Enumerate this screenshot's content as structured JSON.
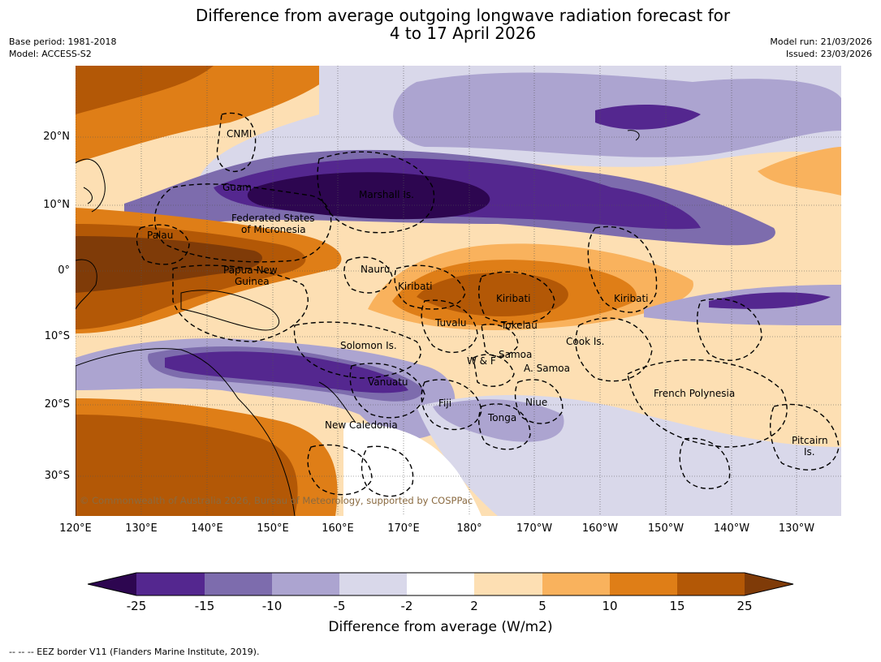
{
  "title_line1": "Difference from average outgoing longwave radiation forecast for",
  "title_line2": "4 to 17 April 2026",
  "base_period": "Base period: 1981-2018",
  "model": "Model: ACCESS-S2",
  "model_run": "Model run: 21/03/2026",
  "issued": "Issued: 23/03/2026",
  "lat_labels": [
    "20°N",
    "10°N",
    "0°",
    "10°S",
    "20°S",
    "30°S"
  ],
  "lon_labels": [
    "120°E",
    "130°E",
    "140°E",
    "150°E",
    "160°E",
    "170°E",
    "180°",
    "170°W",
    "160°W",
    "150°W",
    "140°W",
    "130°W"
  ],
  "regions": {
    "cnmi": "CNMI",
    "guam": "Guam",
    "marshall": "Marshall Is.",
    "fsm_1": "Federated States",
    "fsm_2": "of Micronesia",
    "palau": "Palau",
    "png_1": "Papua New",
    "png_2": "Guinea",
    "nauru": "Nauru",
    "kiribati_w": "Kiribati",
    "kiribati_c": "Kiribati",
    "kiribati_e": "Kiribati",
    "tuvalu": "Tuvalu",
    "tokelau": "Tokelau",
    "solomon": "Solomon Is.",
    "wallis": "W & F",
    "samoa": "Samoa",
    "asamoa": "A. Samoa",
    "cook": "Cook Is.",
    "vanuatu": "Vanuatu",
    "fiji": "Fiji",
    "niue": "Niue",
    "tonga": "Tonga",
    "french_polynesia": "French Polynesia",
    "new_caledonia": "New Caledonia",
    "pitcairn_1": "Pitcairn",
    "pitcairn_2": "Is."
  },
  "copyright": "© Commonwealth of Australia 2026, Bureau of Meteorology, supported by COSPPac",
  "colorbar": {
    "ticks": [
      "-25",
      "-15",
      "-10",
      "-5",
      "-2",
      "2",
      "5",
      "10",
      "15",
      "25"
    ],
    "colors": [
      "#2d0650",
      "#54278f",
      "#7d6cad",
      "#aca4d0",
      "#d9d8ea",
      "#ffffff",
      "#fddfb3",
      "#f9b25d",
      "#df7e17",
      "#b35806",
      "#7f3b08"
    ],
    "title": "Difference from average (W/m2)"
  },
  "footnote": "--  --  -- EEZ border V11 (Flanders Marine Institute, 2019)."
}
